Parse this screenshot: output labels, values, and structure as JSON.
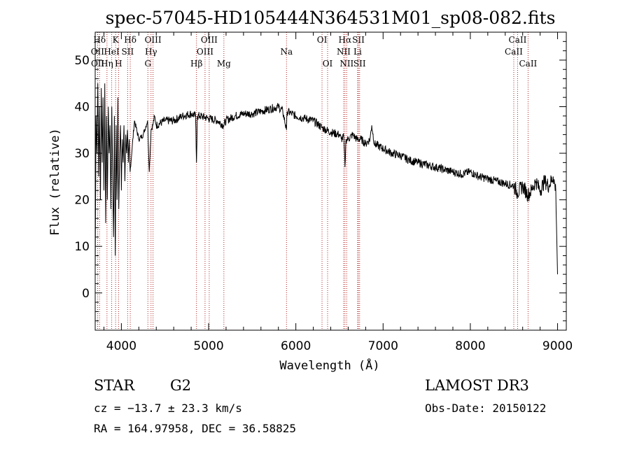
{
  "chart_data": {
    "type": "line",
    "title": "spec-57045-HD105444N364531M01_sp08-082.fits",
    "xlabel": "Wavelength (Å)",
    "ylabel": "Flux (relative)",
    "xlim": [
      3700,
      9100
    ],
    "ylim": [
      -8,
      56
    ],
    "x_ticks": [
      4000,
      5000,
      6000,
      7000,
      8000,
      9000
    ],
    "x_tick_labels": [
      "4000",
      "5000",
      "6000",
      "7000",
      "8000",
      "9000"
    ],
    "y_ticks": [
      0,
      10,
      20,
      30,
      40,
      50
    ],
    "y_tick_labels": [
      "0",
      "10",
      "20",
      "30",
      "40",
      "50"
    ],
    "grid": false,
    "series": [
      {
        "name": "spectrum",
        "color": "#000000",
        "x": [
          3700,
          3710,
          3720,
          3730,
          3740,
          3750,
          3760,
          3770,
          3780,
          3790,
          3800,
          3810,
          3820,
          3830,
          3840,
          3850,
          3860,
          3870,
          3880,
          3890,
          3900,
          3910,
          3920,
          3930,
          3940,
          3950,
          3960,
          3970,
          3980,
          3990,
          4000,
          4010,
          4020,
          4030,
          4040,
          4050,
          4060,
          4070,
          4080,
          4090,
          4100,
          4150,
          4200,
          4250,
          4300,
          4320,
          4340,
          4360,
          4380,
          4400,
          4500,
          4600,
          4700,
          4800,
          4850,
          4861,
          4870,
          4900,
          5000,
          5100,
          5170,
          5200,
          5300,
          5400,
          5500,
          5600,
          5700,
          5800,
          5850,
          5893,
          5900,
          5950,
          6000,
          6100,
          6200,
          6300,
          6400,
          6500,
          6520,
          6550,
          6563,
          6575,
          6600,
          6650,
          6700,
          6750,
          6800,
          6850,
          6870,
          6900,
          6950,
          7000,
          7100,
          7200,
          7300,
          7400,
          7500,
          7600,
          7700,
          7800,
          7900,
          8000,
          8100,
          8200,
          8300,
          8400,
          8500,
          8540,
          8600,
          8660,
          8700,
          8750,
          8800,
          8850,
          8900,
          8950,
          8980,
          9000
        ],
        "y": [
          5,
          38,
          30,
          45,
          25,
          40,
          20,
          44,
          28,
          42,
          22,
          45,
          15,
          38,
          20,
          40,
          30,
          36,
          18,
          40,
          25,
          12,
          38,
          8,
          36,
          20,
          42,
          18,
          30,
          36,
          22,
          33,
          28,
          36,
          24,
          34,
          30,
          35,
          28,
          33,
          26,
          37,
          33,
          34,
          37,
          26,
          35,
          36,
          38,
          36,
          37,
          37,
          38,
          38.5,
          38,
          28,
          38,
          38,
          37.5,
          37,
          36,
          37,
          38,
          38.5,
          38.5,
          39,
          39.5,
          40,
          39,
          35,
          39,
          38.5,
          38,
          37.5,
          37,
          35.5,
          34.5,
          34,
          33,
          33.5,
          27,
          33,
          33,
          34,
          33,
          33,
          32,
          33,
          36,
          32,
          31.5,
          31,
          30,
          29.5,
          28.5,
          28,
          27.5,
          27,
          26.5,
          26,
          25.5,
          26,
          25,
          24.5,
          24,
          23.5,
          23,
          21.5,
          23,
          21,
          22,
          24,
          22,
          24,
          23,
          25,
          22,
          4
        ]
      }
    ],
    "line_markers": [
      {
        "label": "Hδ",
        "wavelength": 3750,
        "row": 0
      },
      {
        "label": "K",
        "wavelength": 3934,
        "row": 0
      },
      {
        "label": "Hδ",
        "wavelength": 4102,
        "row": 0
      },
      {
        "label": "OIII",
        "wavelength": 4363,
        "row": 0
      },
      {
        "label": "OIII",
        "wavelength": 5007,
        "row": 0
      },
      {
        "label": "OI",
        "wavelength": 6300,
        "row": 0
      },
      {
        "label": "Hα",
        "wavelength": 6563,
        "row": 0
      },
      {
        "label": "SII",
        "wavelength": 6717,
        "row": 0
      },
      {
        "label": "CaII",
        "wavelength": 8542,
        "row": 0
      },
      {
        "label": "OII",
        "wavelength": 3727,
        "row": 1
      },
      {
        "label": "HeI",
        "wavelength": 3889,
        "row": 1
      },
      {
        "label": "SII",
        "wavelength": 4072,
        "row": 1
      },
      {
        "label": "Hγ",
        "wavelength": 4340,
        "row": 1
      },
      {
        "label": "OIII",
        "wavelength": 4959,
        "row": 1
      },
      {
        "label": "Na",
        "wavelength": 5893,
        "row": 1
      },
      {
        "label": "NII",
        "wavelength": 6548,
        "row": 1
      },
      {
        "label": "Li",
        "wavelength": 6708,
        "row": 1
      },
      {
        "label": "CaII",
        "wavelength": 8498,
        "row": 1
      },
      {
        "label": "OII",
        "wavelength": 3729,
        "row": 2
      },
      {
        "label": "Hη",
        "wavelength": 3835,
        "row": 2
      },
      {
        "label": "H",
        "wavelength": 3968,
        "row": 2
      },
      {
        "label": "G",
        "wavelength": 4304,
        "row": 2
      },
      {
        "label": "Hβ",
        "wavelength": 4861,
        "row": 2
      },
      {
        "label": "Mg",
        "wavelength": 5175,
        "row": 2
      },
      {
        "label": "OI",
        "wavelength": 6364,
        "row": 2
      },
      {
        "label": "NII",
        "wavelength": 6583,
        "row": 2
      },
      {
        "label": "SII",
        "wavelength": 6731,
        "row": 2
      },
      {
        "label": "CaII",
        "wavelength": 8662,
        "row": 2
      }
    ]
  },
  "info": {
    "object_class": "STAR",
    "subclass": "G2",
    "survey": "LAMOST DR3",
    "redshift": "cz = −13.7 ± 23.3 km/s",
    "obs_date": "Obs-Date: 20150122",
    "coords": "RA = 164.97958, DEC =  36.58825"
  }
}
